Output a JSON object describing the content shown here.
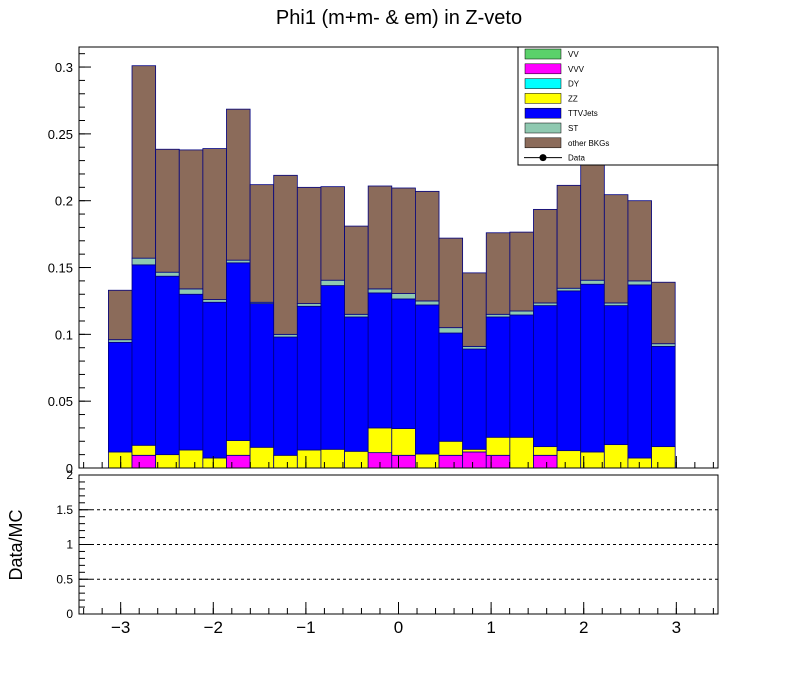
{
  "chart_data": {
    "title": "Phi1 (m+m- & em) in Z-veto",
    "type": "stacked-histogram",
    "x": [
      -3.005,
      -2.75,
      -2.495,
      -2.24,
      -1.985,
      -1.73,
      -1.475,
      -1.22,
      -0.965,
      -0.71,
      -0.455,
      -0.2,
      0.055,
      0.31,
      0.565,
      0.82,
      1.075,
      1.33,
      1.585,
      1.84,
      2.095,
      2.35,
      2.605,
      2.86,
      3.115
    ],
    "series": [
      {
        "name": "VV",
        "color": "#5bd16a",
        "values": [
          0,
          0,
          0,
          0,
          0,
          0,
          0,
          0,
          0,
          0,
          0,
          0,
          0,
          0,
          0,
          0,
          0,
          0,
          0,
          0,
          0,
          0,
          0,
          0,
          0
        ]
      },
      {
        "name": "VVV",
        "color": "#ff00ff",
        "values": [
          0,
          0.0095,
          0,
          0,
          0,
          0.0095,
          0,
          0,
          0,
          0,
          0,
          0.0115,
          0.0095,
          0,
          0.0095,
          0.012,
          0.0095,
          0,
          0.0095,
          0,
          0,
          0,
          0,
          0,
          0
        ]
      },
      {
        "name": "DY",
        "color": "#00ffff",
        "values": [
          0,
          0,
          0,
          0,
          0,
          0,
          0,
          0,
          0,
          0,
          0,
          0,
          0,
          0,
          0,
          0,
          0,
          0,
          0,
          0,
          0,
          0,
          0,
          0,
          0
        ]
      },
      {
        "name": "ZZ",
        "color": "#ffff00",
        "values": [
          0.012,
          0.0075,
          0.01,
          0.0135,
          0.0075,
          0.011,
          0.0155,
          0.0095,
          0.0135,
          0.014,
          0.0125,
          0.0185,
          0.02,
          0.0105,
          0.0105,
          0.002,
          0.0135,
          0.023,
          0.0065,
          0.013,
          0.012,
          0.0175,
          0.0075,
          0.016,
          0.0
        ]
      },
      {
        "name": "TTVJets",
        "color": "#0000ff",
        "values": [
          0.082,
          0.135,
          0.1335,
          0.1165,
          0.1165,
          0.133,
          0.1075,
          0.0885,
          0.1075,
          0.1225,
          0.1005,
          0.101,
          0.097,
          0.1115,
          0.081,
          0.075,
          0.09,
          0.0915,
          0.1055,
          0.1195,
          0.1255,
          0.104,
          0.1295,
          0.075,
          0.0
        ]
      },
      {
        "name": "ST",
        "color": "#8fc9b1",
        "values": [
          0.002,
          0.005,
          0.003,
          0.004,
          0.002,
          0.002,
          0.001,
          0.002,
          0.002,
          0.004,
          0.002,
          0.003,
          0.004,
          0.003,
          0.004,
          0.002,
          0.002,
          0.003,
          0.002,
          0.002,
          0.003,
          0.002,
          0.003,
          0.002,
          0.0
        ]
      },
      {
        "name": "other BKGs",
        "color": "#8b6b5a",
        "values": [
          0.037,
          0.144,
          0.092,
          0.104,
          0.113,
          0.113,
          0.088,
          0.119,
          0.087,
          0.07,
          0.066,
          0.077,
          0.079,
          0.082,
          0.067,
          0.055,
          0.061,
          0.059,
          0.07,
          0.077,
          0.098,
          0.081,
          0.06,
          0.046,
          0.0
        ]
      },
      {
        "name": "Data",
        "color": "#000000",
        "values": []
      }
    ],
    "ylim": [
      0,
      0.315
    ],
    "yticks": [
      "0",
      "0.05",
      "0.1",
      "0.15",
      "0.2",
      "0.25",
      "0.3"
    ],
    "xticks": [
      "−3",
      "−2",
      "−1",
      "0",
      "1",
      "2",
      "3"
    ],
    "xlim": [
      -3.45,
      3.45
    ],
    "ratio": {
      "ylabel": "Data/MC",
      "ylim": [
        0,
        2
      ],
      "yticks": [
        "0",
        "0.5",
        "1",
        "1.5",
        "2"
      ],
      "reference_lines": [
        0.5,
        1.0,
        1.5
      ]
    },
    "legend_position": "top-right"
  }
}
